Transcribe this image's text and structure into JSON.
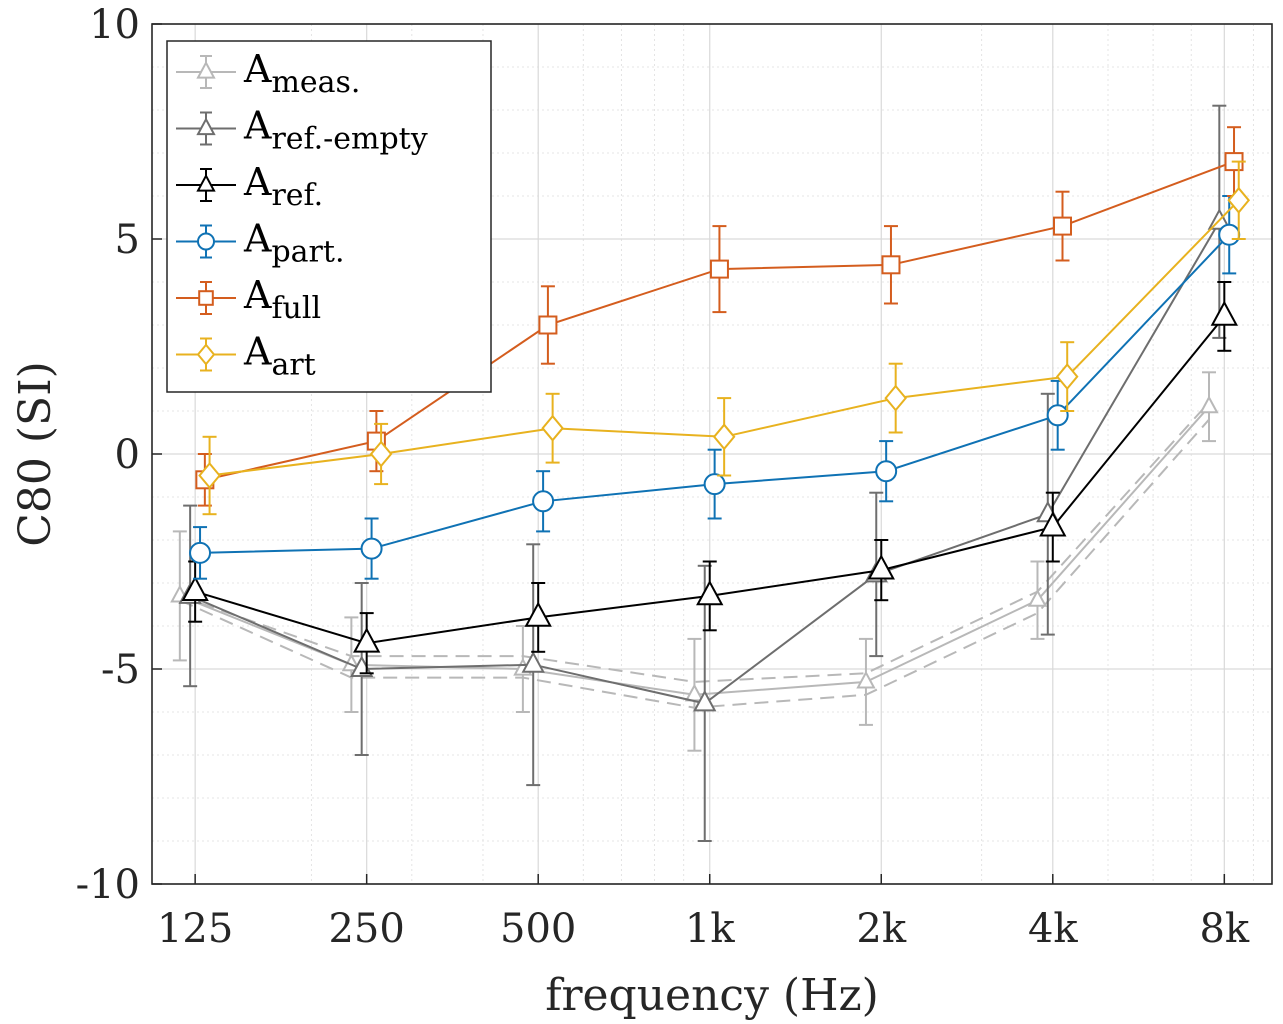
{
  "chart_data": {
    "type": "line",
    "title": "",
    "xlabel": "frequency (Hz)",
    "ylabel": "C80 (SI)",
    "x_scale": "log",
    "categories": [
      "125",
      "250",
      "500",
      "1k",
      "2k",
      "4k",
      "8k"
    ],
    "x_values_hz": [
      125,
      250,
      500,
      1000,
      2000,
      4000,
      8000
    ],
    "xlim_hz": [
      105,
      9700
    ],
    "ylim": [
      -10,
      10
    ],
    "yticks": [
      -10,
      -5,
      0,
      5,
      10
    ],
    "ytick_labels": [
      "-10",
      "-5",
      "0",
      "5",
      "10"
    ],
    "grid": true,
    "minor_grid": true,
    "legend_position": "top-left",
    "series": [
      {
        "name": "A",
        "sub": "meas.",
        "color": "#b8b8b8",
        "marker": "triangle",
        "marker_size": "small",
        "x_offset": 0.94,
        "values": [
          -3.3,
          -4.9,
          -5.0,
          -5.6,
          -5.3,
          -3.4,
          1.1
        ],
        "err": [
          1.5,
          1.1,
          1.0,
          1.3,
          1.0,
          0.9,
          0.8
        ],
        "band_upper": [
          -3.3,
          -4.7,
          -4.7,
          -5.3,
          -5.1,
          -3.2,
          1.2
        ],
        "band_lower": [
          -3.4,
          -5.2,
          -5.2,
          -5.9,
          -5.6,
          -3.7,
          0.8
        ]
      },
      {
        "name": "A",
        "sub": "ref.-empty",
        "color": "#6e6e6e",
        "marker": "triangle",
        "marker_size": "medium",
        "x_offset": 0.98,
        "values": [
          -3.3,
          -5.0,
          -4.9,
          -5.8,
          -2.8,
          -1.4,
          5.4
        ],
        "err": [
          2.1,
          2.0,
          2.8,
          3.2,
          1.9,
          2.8,
          2.7
        ]
      },
      {
        "name": "A",
        "sub": "ref.",
        "color": "#000000",
        "marker": "triangle",
        "marker_size": "large",
        "x_offset": 1.0,
        "values": [
          -3.2,
          -4.4,
          -3.8,
          -3.3,
          -2.7,
          -1.7,
          3.2
        ],
        "err": [
          0.7,
          0.7,
          0.8,
          0.8,
          0.7,
          0.8,
          0.8
        ]
      },
      {
        "name": "A",
        "sub": "part.",
        "color": "#0f72b4",
        "marker": "circle",
        "marker_size": "medium",
        "x_offset": 1.02,
        "values": [
          -2.3,
          -2.2,
          -1.1,
          -0.7,
          -0.4,
          0.9,
          5.1
        ],
        "err": [
          0.6,
          0.7,
          0.7,
          0.8,
          0.7,
          0.8,
          0.9
        ]
      },
      {
        "name": "A",
        "sub": "full",
        "color": "#d45d1e",
        "marker": "square",
        "marker_size": "medium",
        "x_offset": 1.04,
        "values": [
          -0.6,
          0.3,
          3.0,
          4.3,
          4.4,
          5.3,
          6.8
        ],
        "err": [
          0.6,
          0.7,
          0.9,
          1.0,
          0.9,
          0.8,
          0.8
        ]
      },
      {
        "name": "A",
        "sub": "art",
        "color": "#e8b21f",
        "marker": "diamond",
        "marker_size": "medium",
        "x_offset": 1.06,
        "values": [
          -0.5,
          0.0,
          0.6,
          0.4,
          1.3,
          1.8,
          5.9
        ],
        "err": [
          0.9,
          0.7,
          0.8,
          0.9,
          0.8,
          0.8,
          0.9
        ]
      }
    ]
  }
}
